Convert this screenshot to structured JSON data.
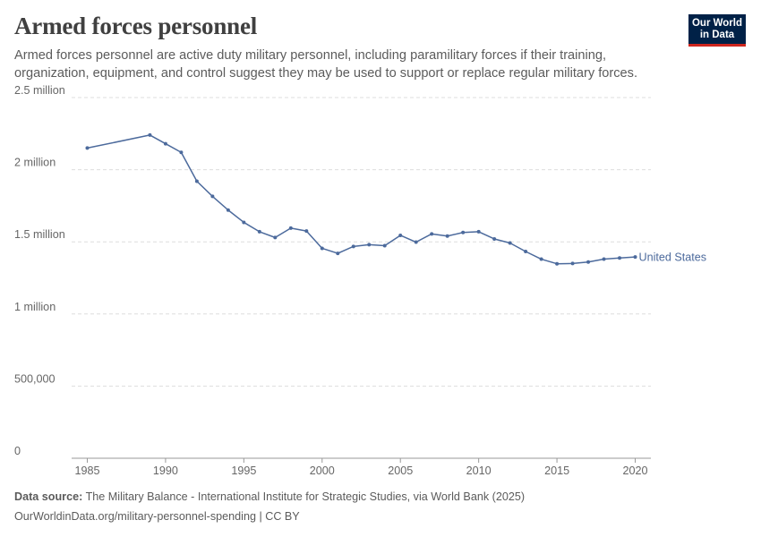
{
  "header": {
    "title": "Armed forces personnel",
    "subtitle": "Armed forces personnel are active duty military personnel, including paramilitary forces if their training, organization, equipment, and control suggest they may be used to support or replace regular military forces."
  },
  "logo": {
    "line1": "Our World",
    "line2": "in Data",
    "bg_color": "#002147",
    "accent_color": "#ce261e"
  },
  "footer": {
    "source_label": "Data source:",
    "source_text": "The Military Balance - International Institute for Strategic Studies, via World Bank (2025)",
    "url_text": "OurWorldinData.org/military-personnel-spending | CC BY"
  },
  "chart_data": {
    "type": "line",
    "title": "Armed forces personnel",
    "xlim": [
      1984,
      2021
    ],
    "ylim": [
      0,
      2500000
    ],
    "y_ticks": [
      {
        "value": 0,
        "label": "0"
      },
      {
        "value": 500000,
        "label": "500,000"
      },
      {
        "value": 1000000,
        "label": "1 million"
      },
      {
        "value": 1500000,
        "label": "1.5 million"
      },
      {
        "value": 2000000,
        "label": "2 million"
      },
      {
        "value": 2500000,
        "label": "2.5 million"
      }
    ],
    "x_ticks": [
      {
        "value": 1985,
        "label": "1985"
      },
      {
        "value": 1990,
        "label": "1990"
      },
      {
        "value": 1995,
        "label": "1995"
      },
      {
        "value": 2000,
        "label": "2000"
      },
      {
        "value": 2005,
        "label": "2005"
      },
      {
        "value": 2010,
        "label": "2010"
      },
      {
        "value": 2015,
        "label": "2015"
      },
      {
        "value": 2020,
        "label": "2020"
      }
    ],
    "grid": true,
    "series": [
      {
        "name": "United States",
        "color": "#4c6a9c",
        "x": [
          1985,
          1989,
          1990,
          1991,
          1992,
          1993,
          1994,
          1995,
          1996,
          1997,
          1998,
          1999,
          2000,
          2001,
          2002,
          2003,
          2004,
          2005,
          2006,
          2007,
          2008,
          2009,
          2010,
          2011,
          2012,
          2013,
          2014,
          2015,
          2016,
          2017,
          2018,
          2019,
          2020
        ],
        "y": [
          2150000,
          2240000,
          2180000,
          2120000,
          1920000,
          1815000,
          1720000,
          1635000,
          1570000,
          1530000,
          1595000,
          1575000,
          1455000,
          1420000,
          1468000,
          1480000,
          1473000,
          1545000,
          1498000,
          1555000,
          1540000,
          1565000,
          1570000,
          1520000,
          1492000,
          1433000,
          1380000,
          1348000,
          1350000,
          1360000,
          1380000,
          1388000,
          1395000
        ]
      }
    ]
  }
}
